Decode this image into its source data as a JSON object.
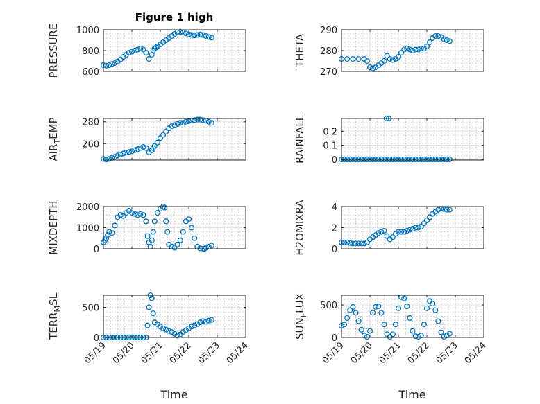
{
  "figure": {
    "title": "Figure 1 high",
    "marker_color": "#0072BD"
  },
  "chart_data": [
    {
      "type": "scatter",
      "id": "pressure",
      "ylabel": "PRESSURE",
      "ylim": [
        600,
        1000
      ],
      "yticks": [
        600,
        800,
        1000
      ],
      "yticklabels": [
        "600",
        "800",
        "1000"
      ],
      "xlim": [
        0,
        5
      ],
      "xticks": [
        0,
        1,
        2,
        3,
        4,
        5
      ],
      "xticklabels": [],
      "x": [
        0.0,
        0.1,
        0.2,
        0.3,
        0.4,
        0.5,
        0.6,
        0.7,
        0.8,
        0.9,
        1.0,
        1.1,
        1.2,
        1.3,
        1.4,
        1.5,
        1.6,
        1.7,
        1.75,
        1.8,
        1.85,
        1.9,
        2.0,
        2.1,
        2.2,
        2.3,
        2.4,
        2.5,
        2.6,
        2.7,
        2.8,
        2.9,
        3.0,
        3.1,
        3.2,
        3.3,
        3.4,
        3.5,
        3.6,
        3.7,
        3.8
      ],
      "y": [
        660,
        655,
        660,
        670,
        680,
        695,
        715,
        740,
        760,
        780,
        790,
        800,
        810,
        820,
        810,
        780,
        720,
        760,
        800,
        820,
        830,
        840,
        860,
        880,
        900,
        920,
        940,
        960,
        975,
        980,
        975,
        965,
        955,
        950,
        945,
        950,
        955,
        950,
        940,
        930,
        925
      ]
    },
    {
      "type": "scatter",
      "id": "theta",
      "ylabel": "THETA",
      "ylim": [
        270,
        290
      ],
      "yticks": [
        270,
        280,
        290
      ],
      "yticklabels": [
        "270",
        "280",
        "290"
      ],
      "xlim": [
        0,
        5
      ],
      "xticks": [
        0,
        1,
        2,
        3,
        4,
        5
      ],
      "xticklabels": [],
      "x": [
        0.0,
        0.2,
        0.4,
        0.6,
        0.8,
        0.9,
        1.0,
        1.1,
        1.2,
        1.3,
        1.4,
        1.5,
        1.6,
        1.7,
        1.8,
        1.9,
        2.0,
        2.1,
        2.2,
        2.3,
        2.4,
        2.5,
        2.6,
        2.7,
        2.8,
        2.9,
        3.0,
        3.1,
        3.2,
        3.3,
        3.4,
        3.5,
        3.6,
        3.7,
        3.8
      ],
      "y": [
        276,
        276,
        276,
        276,
        276,
        275,
        272,
        271.5,
        272,
        273,
        274,
        275,
        277.5,
        276,
        275.5,
        276,
        277,
        279,
        280.5,
        281,
        280.5,
        280,
        280.5,
        280.5,
        281,
        281,
        282,
        284,
        286,
        287,
        287,
        286.5,
        285.5,
        285,
        284.5
      ]
    },
    {
      "type": "scatter",
      "id": "air_temp",
      "ylabel": "AIR_TEMP",
      "ylabel_sub": "T",
      "ylim": [
        245,
        283
      ],
      "yticks": [
        260,
        280
      ],
      "yticklabels": [
        "260",
        "280"
      ],
      "xlim": [
        0,
        5
      ],
      "xticks": [
        0,
        1,
        2,
        3,
        4,
        5
      ],
      "xticklabels": [],
      "x": [
        0.0,
        0.1,
        0.2,
        0.3,
        0.4,
        0.5,
        0.6,
        0.7,
        0.8,
        0.9,
        1.0,
        1.1,
        1.2,
        1.3,
        1.4,
        1.5,
        1.6,
        1.7,
        1.75,
        1.8,
        1.9,
        2.0,
        2.1,
        2.2,
        2.3,
        2.4,
        2.5,
        2.6,
        2.7,
        2.8,
        2.9,
        3.0,
        3.1,
        3.2,
        3.3,
        3.4,
        3.5,
        3.6,
        3.7,
        3.8
      ],
      "y": [
        246,
        245.5,
        246,
        247,
        248,
        249,
        250,
        251,
        252,
        252.5,
        253,
        254,
        255,
        256,
        257,
        256,
        252,
        254,
        256,
        258,
        261,
        265,
        268,
        271,
        274,
        276,
        277,
        278,
        279,
        279,
        280,
        280.5,
        281,
        281.5,
        282,
        282,
        281.5,
        281,
        280,
        279
      ]
    },
    {
      "type": "scatter",
      "id": "rainfall",
      "ylabel": "RAINFALL",
      "ylim": [
        -0.005,
        0.29
      ],
      "yticks": [
        0,
        0.1,
        0.2
      ],
      "yticklabels": [
        "0",
        "0.1",
        "0.2"
      ],
      "xlim": [
        0,
        5
      ],
      "xticks": [
        0,
        1,
        2,
        3,
        4,
        5
      ],
      "xticklabels": [],
      "x": [
        0.0,
        0.1,
        0.2,
        0.3,
        0.4,
        0.5,
        0.6,
        0.7,
        0.8,
        0.9,
        1.0,
        1.1,
        1.2,
        1.3,
        1.4,
        1.5,
        1.6,
        1.7,
        1.8,
        1.9,
        2.0,
        2.1,
        2.2,
        2.3,
        2.4,
        2.5,
        2.6,
        2.7,
        2.8,
        2.9,
        3.0,
        3.1,
        3.2,
        3.3,
        3.4,
        3.5,
        3.6,
        3.7,
        3.8,
        1.58,
        1.66
      ],
      "y": [
        0,
        0,
        0,
        0,
        0,
        0,
        0,
        0,
        0,
        0,
        0,
        0,
        0,
        0,
        0,
        0,
        0,
        0,
        0,
        0,
        0,
        0,
        0,
        0,
        0,
        0,
        0,
        0,
        0,
        0,
        0,
        0,
        0,
        0,
        0,
        0,
        0,
        0,
        0,
        0.29,
        0.29
      ]
    },
    {
      "type": "scatter",
      "id": "mixdepth",
      "ylabel": "MIXDEPTH",
      "ylim": [
        0,
        2000
      ],
      "yticks": [
        0,
        1000,
        2000
      ],
      "yticklabels": [
        "0",
        "1000",
        "2000"
      ],
      "xlim": [
        0,
        5
      ],
      "xticks": [
        0,
        1,
        2,
        3,
        4,
        5
      ],
      "xticklabels": [],
      "x": [
        0.0,
        0.05,
        0.1,
        0.15,
        0.2,
        0.3,
        0.4,
        0.5,
        0.6,
        0.7,
        0.8,
        0.9,
        1.0,
        1.1,
        1.2,
        1.3,
        1.4,
        1.5,
        1.55,
        1.6,
        1.65,
        1.7,
        1.75,
        1.8,
        1.9,
        2.0,
        2.1,
        2.15,
        2.2,
        2.25,
        2.3,
        2.4,
        2.5,
        2.6,
        2.7,
        2.8,
        2.9,
        3.0,
        3.1,
        3.2,
        3.3,
        3.4,
        3.5,
        3.55,
        3.6,
        3.7,
        3.8
      ],
      "y": [
        300,
        400,
        500,
        650,
        800,
        750,
        1100,
        1500,
        1600,
        1550,
        1700,
        1800,
        1700,
        1650,
        1600,
        1650,
        1600,
        1300,
        600,
        300,
        100,
        400,
        800,
        1300,
        1700,
        1900,
        2000,
        1950,
        1300,
        800,
        200,
        100,
        50,
        200,
        400,
        800,
        1300,
        1400,
        1000,
        500,
        100,
        20,
        0,
        0,
        50,
        100,
        150
      ]
    },
    {
      "type": "scatter",
      "id": "h2omixra",
      "ylabel": "H2OMIXRA",
      "ylim": [
        0,
        4
      ],
      "yticks": [
        0,
        2,
        4
      ],
      "yticklabels": [
        "0",
        "2",
        "4"
      ],
      "xlim": [
        0,
        5
      ],
      "xticks": [
        0,
        1,
        2,
        3,
        4,
        5
      ],
      "xticklabels": [],
      "x": [
        0.0,
        0.1,
        0.2,
        0.3,
        0.4,
        0.5,
        0.6,
        0.7,
        0.8,
        0.9,
        1.0,
        1.1,
        1.2,
        1.3,
        1.4,
        1.5,
        1.6,
        1.7,
        1.8,
        1.9,
        2.0,
        2.1,
        2.2,
        2.3,
        2.4,
        2.5,
        2.6,
        2.7,
        2.8,
        2.9,
        3.0,
        3.1,
        3.2,
        3.3,
        3.4,
        3.5,
        3.6,
        3.7,
        3.8
      ],
      "y": [
        0.6,
        0.6,
        0.6,
        0.55,
        0.5,
        0.5,
        0.5,
        0.5,
        0.5,
        0.6,
        0.9,
        1.1,
        1.3,
        1.5,
        1.6,
        1.7,
        1.2,
        0.9,
        1.1,
        1.4,
        1.6,
        1.6,
        1.6,
        1.7,
        1.8,
        1.9,
        2.0,
        2.0,
        2.1,
        2.4,
        2.7,
        3.0,
        3.3,
        3.5,
        3.7,
        3.8,
        3.75,
        3.7,
        3.7
      ]
    },
    {
      "type": "scatter",
      "id": "terr_msl",
      "ylabel": "TERR_MSL",
      "ylabel_sub": "M",
      "ylim": [
        0,
        700
      ],
      "yticks": [
        0,
        500
      ],
      "yticklabels": [
        "0",
        "500"
      ],
      "xlim": [
        0,
        5
      ],
      "xticks": [
        0,
        1,
        2,
        3,
        4,
        5
      ],
      "xticklabels": [
        "05/19",
        "05/20",
        "05/21",
        "05/22",
        "05/23",
        "05/24"
      ],
      "x": [
        0.0,
        0.1,
        0.2,
        0.3,
        0.4,
        0.5,
        0.6,
        0.7,
        0.8,
        0.9,
        1.0,
        1.1,
        1.2,
        1.3,
        1.4,
        1.5,
        1.55,
        1.6,
        1.65,
        1.7,
        1.75,
        1.8,
        1.9,
        2.0,
        2.1,
        2.2,
        2.3,
        2.4,
        2.5,
        2.6,
        2.7,
        2.8,
        2.9,
        3.0,
        3.1,
        3.2,
        3.3,
        3.4,
        3.5,
        3.6,
        3.7,
        3.8
      ],
      "y": [
        0,
        0,
        0,
        0,
        0,
        0,
        0,
        0,
        0,
        0,
        0,
        0,
        0,
        0,
        0,
        0,
        200,
        500,
        700,
        650,
        400,
        250,
        220,
        180,
        150,
        130,
        110,
        90,
        60,
        30,
        50,
        90,
        120,
        150,
        180,
        200,
        220,
        250,
        270,
        260,
        280,
        290
      ]
    },
    {
      "type": "scatter",
      "id": "sun_flux",
      "ylabel": "SUN_FLUX",
      "ylabel_sub": "F",
      "ylim": [
        0,
        650
      ],
      "yticks": [
        0,
        500
      ],
      "yticklabels": [
        "0",
        "500"
      ],
      "xlim": [
        0,
        5
      ],
      "xticks": [
        0,
        1,
        2,
        3,
        4,
        5
      ],
      "xticklabels": [
        "05/19",
        "05/20",
        "05/21",
        "05/22",
        "05/23",
        "05/24"
      ],
      "x": [
        0.0,
        0.1,
        0.2,
        0.3,
        0.4,
        0.5,
        0.6,
        0.7,
        0.8,
        0.9,
        1.0,
        1.1,
        1.2,
        1.3,
        1.4,
        1.5,
        1.6,
        1.7,
        1.8,
        1.9,
        2.0,
        2.1,
        2.2,
        2.3,
        2.4,
        2.5,
        2.6,
        2.7,
        2.8,
        2.9,
        3.0,
        3.1,
        3.2,
        3.3,
        3.4,
        3.5,
        3.6,
        3.7,
        3.8
      ],
      "y": [
        180,
        200,
        300,
        420,
        470,
        380,
        250,
        120,
        30,
        10,
        100,
        380,
        470,
        480,
        380,
        200,
        50,
        10,
        50,
        200,
        450,
        620,
        600,
        480,
        300,
        100,
        20,
        10,
        30,
        200,
        450,
        560,
        520,
        420,
        250,
        80,
        10,
        30,
        60
      ]
    }
  ],
  "xlabel_left": "Time",
  "xlabel_right": "Time"
}
